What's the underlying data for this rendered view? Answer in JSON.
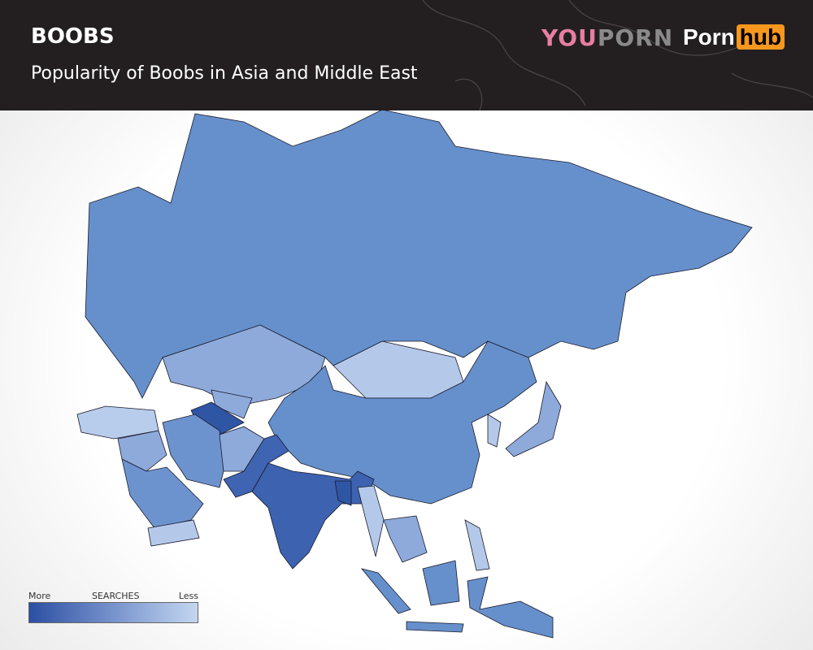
{
  "header": {
    "title": "BOOBS",
    "subtitle": "Popularity of Boobs in Asia and Middle East",
    "logos": {
      "youporn": "YOUPORN",
      "pornhub": [
        "Porn",
        "hub"
      ]
    }
  },
  "legend": {
    "more": "More",
    "title": "SEARCHES",
    "less": "Less",
    "colors": [
      "#2c4fa3",
      "#7f9ad0",
      "#c4d7f0"
    ]
  },
  "colors": {
    "header_bg": "#231f20",
    "pornhub_accent": "#f7971d",
    "youporn_pink": "#e67fa1"
  }
}
